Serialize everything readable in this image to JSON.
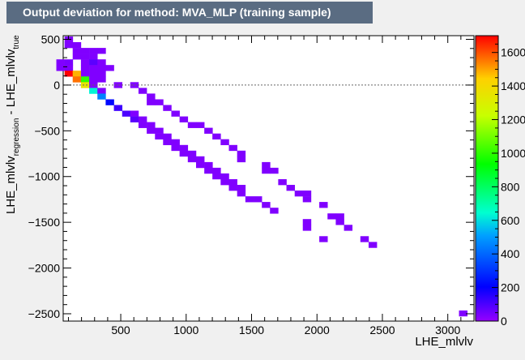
{
  "title": "Output deviation for method: MVA_MLP (training sample)",
  "chart_data": {
    "type": "heatmap",
    "title": "Output deviation for method: MVA_MLP (training sample)",
    "xlabel": "LHE_mlvlv",
    "ylabel_main": "LHE_mlvlv",
    "ylabel_sub1": "regression",
    "ylabel_mid": " - LHE_mlvlv",
    "ylabel_sub2": "true",
    "xlim": [
      60,
      3200
    ],
    "ylim": [
      -2580,
      540
    ],
    "zlim": [
      0,
      1700
    ],
    "xticks": [
      500,
      1000,
      1500,
      2000,
      2500,
      3000
    ],
    "yticks": [
      500,
      0,
      -500,
      -1000,
      -1500,
      -2000,
      -2500
    ],
    "zticks": [
      0,
      200,
      400,
      600,
      800,
      1000,
      1200,
      1400,
      1600
    ],
    "grid": false,
    "reference_line_y": 0,
    "bin_width_x": 62.8,
    "bin_height_y": 62.4,
    "cells": [
      [
        102,
        500,
        30
      ],
      [
        102,
        438,
        30
      ],
      [
        164,
        438,
        30
      ],
      [
        164,
        375,
        30
      ],
      [
        227,
        375,
        30
      ],
      [
        290,
        375,
        30
      ],
      [
        353,
        375,
        30
      ],
      [
        164,
        313,
        30
      ],
      [
        227,
        313,
        30
      ],
      [
        290,
        313,
        30
      ],
      [
        39,
        250,
        30
      ],
      [
        102,
        250,
        40
      ],
      [
        227,
        250,
        30
      ],
      [
        290,
        250,
        80
      ],
      [
        353,
        250,
        30
      ],
      [
        39,
        188,
        30
      ],
      [
        102,
        188,
        30
      ],
      [
        227,
        188,
        30
      ],
      [
        290,
        188,
        30
      ],
      [
        353,
        188,
        30
      ],
      [
        416,
        188,
        30
      ],
      [
        102,
        126,
        1700
      ],
      [
        164,
        126,
        1480
      ],
      [
        227,
        126,
        30
      ],
      [
        290,
        126,
        30
      ],
      [
        353,
        126,
        30
      ],
      [
        164,
        63,
        1560
      ],
      [
        227,
        63,
        1000
      ],
      [
        290,
        63,
        30
      ],
      [
        353,
        63,
        30
      ],
      [
        227,
        1,
        1350
      ],
      [
        290,
        1,
        30
      ],
      [
        479,
        1,
        30
      ],
      [
        604,
        1,
        30
      ],
      [
        290,
        -62,
        630
      ],
      [
        353,
        -62,
        30
      ],
      [
        667,
        -62,
        30
      ],
      [
        353,
        -124,
        450
      ],
      [
        730,
        -124,
        30
      ],
      [
        416,
        -187,
        220
      ],
      [
        730,
        -187,
        30
      ],
      [
        793,
        -187,
        30
      ],
      [
        479,
        -249,
        120
      ],
      [
        855,
        -249,
        30
      ],
      [
        542,
        -311,
        100
      ],
      [
        604,
        -311,
        30
      ],
      [
        918,
        -311,
        30
      ],
      [
        604,
        -374,
        80
      ],
      [
        667,
        -374,
        30
      ],
      [
        981,
        -374,
        30
      ],
      [
        667,
        -436,
        30
      ],
      [
        730,
        -436,
        30
      ],
      [
        1044,
        -436,
        30
      ],
      [
        1107,
        -436,
        30
      ],
      [
        730,
        -498,
        30
      ],
      [
        793,
        -498,
        30
      ],
      [
        1170,
        -498,
        30
      ],
      [
        793,
        -561,
        30
      ],
      [
        855,
        -561,
        30
      ],
      [
        1232,
        -561,
        30
      ],
      [
        855,
        -623,
        30
      ],
      [
        918,
        -623,
        30
      ],
      [
        1295,
        -623,
        30
      ],
      [
        918,
        -686,
        30
      ],
      [
        981,
        -686,
        30
      ],
      [
        1358,
        -686,
        30
      ],
      [
        981,
        -748,
        30
      ],
      [
        1044,
        -748,
        30
      ],
      [
        1421,
        -748,
        30
      ],
      [
        1044,
        -810,
        30
      ],
      [
        1107,
        -810,
        30
      ],
      [
        1421,
        -810,
        30
      ],
      [
        1107,
        -873,
        30
      ],
      [
        1170,
        -873,
        30
      ],
      [
        1610,
        -873,
        30
      ],
      [
        1170,
        -935,
        30
      ],
      [
        1232,
        -935,
        30
      ],
      [
        1610,
        -935,
        30
      ],
      [
        1672,
        -935,
        30
      ],
      [
        1232,
        -997,
        30
      ],
      [
        1295,
        -997,
        30
      ],
      [
        1295,
        -1060,
        30
      ],
      [
        1358,
        -1060,
        30
      ],
      [
        1735,
        -1060,
        30
      ],
      [
        1358,
        -1122,
        30
      ],
      [
        1421,
        -1122,
        30
      ],
      [
        1798,
        -1122,
        30
      ],
      [
        1421,
        -1184,
        30
      ],
      [
        1861,
        -1184,
        30
      ],
      [
        1923,
        -1184,
        30
      ],
      [
        1484,
        -1247,
        30
      ],
      [
        1547,
        -1247,
        30
      ],
      [
        1923,
        -1247,
        30
      ],
      [
        1610,
        -1309,
        30
      ],
      [
        2049,
        -1309,
        30
      ],
      [
        1672,
        -1372,
        30
      ],
      [
        2112,
        -1434,
        30
      ],
      [
        2175,
        -1434,
        30
      ],
      [
        1923,
        -1496,
        30
      ],
      [
        2175,
        -1496,
        30
      ],
      [
        1923,
        -1559,
        30
      ],
      [
        2238,
        -1559,
        30
      ],
      [
        2049,
        -1683,
        30
      ],
      [
        2363,
        -1683,
        30
      ],
      [
        2426,
        -1746,
        30
      ],
      [
        3117,
        -2495,
        30
      ]
    ]
  }
}
